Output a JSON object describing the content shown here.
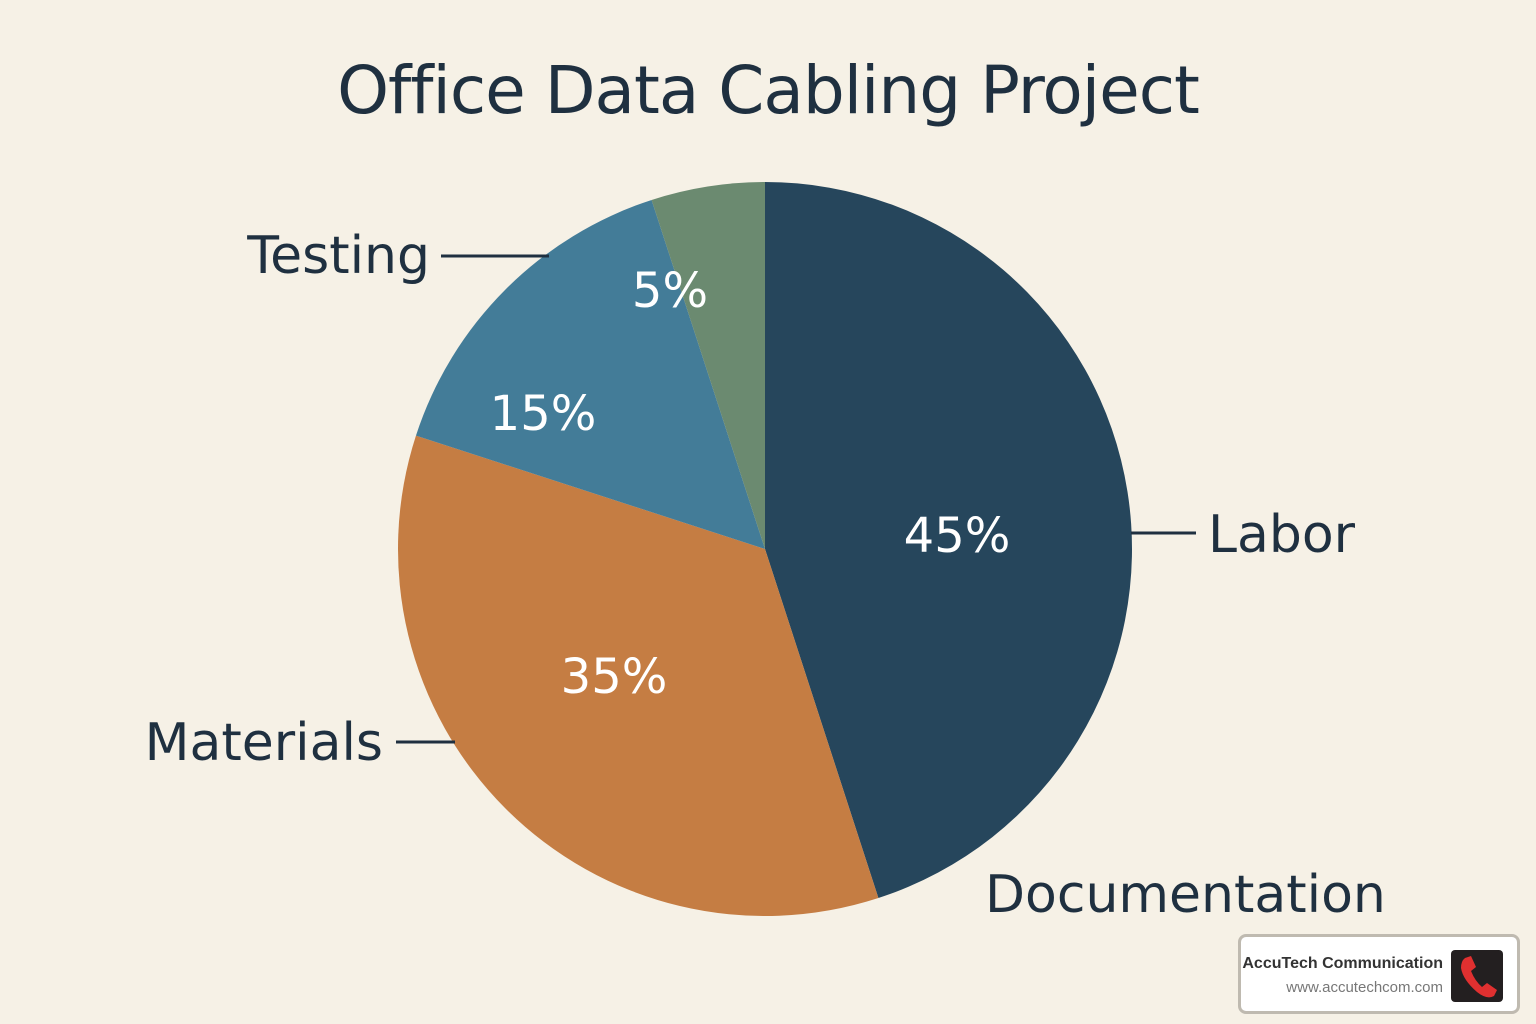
{
  "chart_data": {
    "type": "pie",
    "title": "Office Data Cabling Project",
    "slices": [
      {
        "label": "Labor",
        "value": 45,
        "display": "45%",
        "color": "#26465c"
      },
      {
        "label": "Materials",
        "value": 35,
        "display": "35%",
        "color": "#c57d43"
      },
      {
        "label": "",
        "value": 15,
        "display": "15%",
        "color": "#437c98"
      },
      {
        "label": "",
        "value": 5,
        "display": "5%",
        "color": "#6b8a70"
      }
    ],
    "callout_labels": [
      "Labor",
      "Materials",
      "Testing",
      "Documentation"
    ],
    "legend": "none"
  },
  "logo": {
    "name": "AccuTech Communication",
    "url": "www.accutechcom.com",
    "icon": "phone-icon",
    "icon_color": "#e03030"
  }
}
